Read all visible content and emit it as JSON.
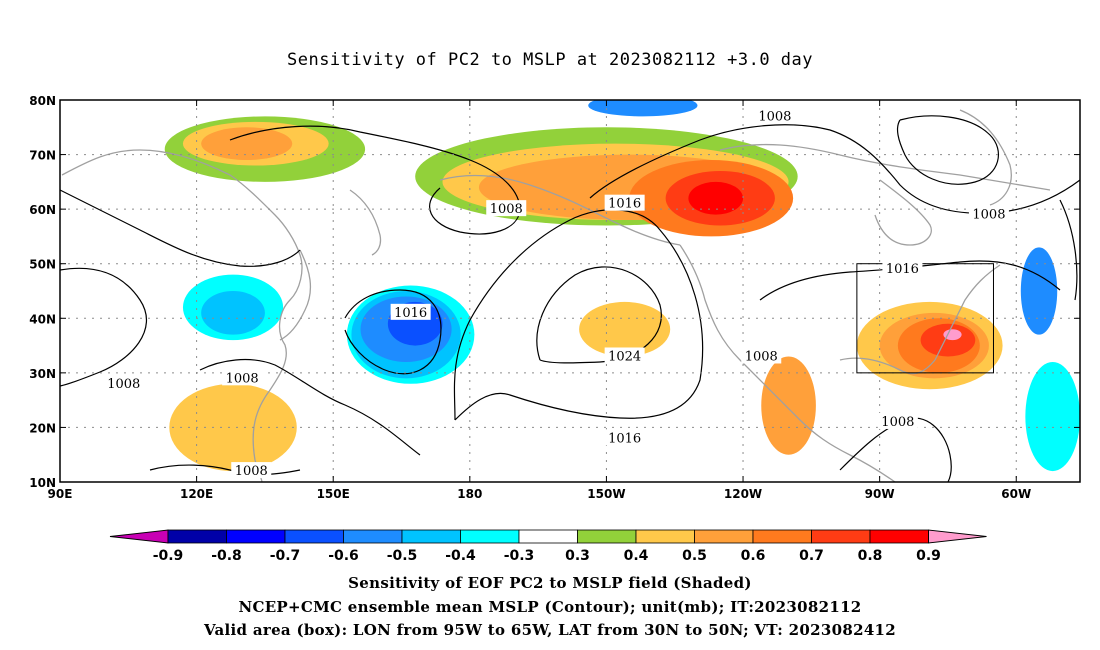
{
  "title": "Sensitivity of PC2 to MSLP at 2023082112 +3.0 day",
  "lat_ticks": [
    "80N",
    "70N",
    "60N",
    "50N",
    "40N",
    "30N",
    "20N",
    "10N"
  ],
  "lon_ticks": [
    "90E",
    "120E",
    "150E",
    "180",
    "150W",
    "120W",
    "90W",
    "60W"
  ],
  "lat_values": [
    80,
    70,
    60,
    50,
    40,
    30,
    20,
    10
  ],
  "lon_values": [
    90,
    120,
    150,
    180,
    210,
    240,
    270,
    300
  ],
  "contour_labels": [
    {
      "text": "1008",
      "lon": 247,
      "lat": 77
    },
    {
      "text": "1008",
      "lon": 294,
      "lat": 59
    },
    {
      "text": "1016",
      "lon": 214,
      "lat": 61
    },
    {
      "text": "1008",
      "lon": 188,
      "lat": 60
    },
    {
      "text": "1016",
      "lon": 275,
      "lat": 49
    },
    {
      "text": "1016",
      "lon": 167,
      "lat": 41
    },
    {
      "text": "1024",
      "lon": 214,
      "lat": 33
    },
    {
      "text": "1008",
      "lon": 244,
      "lat": 33
    },
    {
      "text": "1008",
      "lon": 104,
      "lat": 28
    },
    {
      "text": "1008",
      "lon": 130,
      "lat": 29
    },
    {
      "text": "1016",
      "lon": 214,
      "lat": 18
    },
    {
      "text": "1008",
      "lon": 274,
      "lat": 21
    },
    {
      "text": "1008",
      "lon": 132,
      "lat": 12
    }
  ],
  "valid_box": {
    "lon_min": 265,
    "lon_max": 295,
    "lat_min": 30,
    "lat_max": 50
  },
  "colorbar": {
    "labels": [
      "-0.9",
      "-0.8",
      "-0.7",
      "-0.6",
      "-0.5",
      "-0.4",
      "-0.3",
      "0.3",
      "0.4",
      "0.5",
      "0.6",
      "0.7",
      "0.8",
      "0.9"
    ],
    "colors": [
      "#0000a8",
      "#0000ff",
      "#0a50ff",
      "#1e8cff",
      "#00c3ff",
      "#00ffff",
      "#ffffff",
      "#92d13a",
      "#ffc84a",
      "#ffa03a",
      "#ff7a1e",
      "#ff3c14",
      "#ff0000"
    ],
    "low_color": "#c800b4",
    "high_color": "#ff9ccd"
  },
  "captions": {
    "line1": "Sensitivity of EOF PC2 to MSLP field (Shaded)",
    "line2": "NCEP+CMC ensemble mean MSLP (Contour); unit(mb); IT:2023082112",
    "line3": "Valid area (box): LON from 95W to 65W, LAT from 30N to 50N; VT: 2023082412"
  },
  "blobs": [
    {
      "lon": 135,
      "lat": 71,
      "rx": 22,
      "ry": 6,
      "color": "#92d13a"
    },
    {
      "lon": 133,
      "lat": 72,
      "rx": 16,
      "ry": 4,
      "color": "#ffc84a"
    },
    {
      "lon": 131,
      "lat": 72,
      "rx": 10,
      "ry": 3,
      "color": "#ffa03a"
    },
    {
      "lon": 210,
      "lat": 66,
      "rx": 42,
      "ry": 9,
      "color": "#92d13a"
    },
    {
      "lon": 212,
      "lat": 65,
      "rx": 38,
      "ry": 7,
      "color": "#ffc84a"
    },
    {
      "lon": 215,
      "lat": 64,
      "rx": 33,
      "ry": 6,
      "color": "#ffa03a"
    },
    {
      "lon": 233,
      "lat": 62,
      "rx": 18,
      "ry": 7,
      "color": "#ff7a1e"
    },
    {
      "lon": 235,
      "lat": 62,
      "rx": 12,
      "ry": 5,
      "color": "#ff3c14"
    },
    {
      "lon": 234,
      "lat": 62,
      "rx": 6,
      "ry": 3,
      "color": "#ff0000"
    },
    {
      "lon": 167,
      "lat": 37,
      "rx": 14,
      "ry": 9,
      "color": "#00ffff"
    },
    {
      "lon": 166,
      "lat": 37,
      "rx": 12,
      "ry": 8,
      "color": "#00c3ff"
    },
    {
      "lon": 166,
      "lat": 38,
      "rx": 10,
      "ry": 6,
      "color": "#1e8cff"
    },
    {
      "lon": 168,
      "lat": 39,
      "rx": 6,
      "ry": 4,
      "color": "#0a50ff"
    },
    {
      "lon": 128,
      "lat": 42,
      "rx": 11,
      "ry": 6,
      "color": "#00ffff"
    },
    {
      "lon": 128,
      "lat": 41,
      "rx": 7,
      "ry": 4,
      "color": "#00c3ff"
    },
    {
      "lon": 281,
      "lat": 35,
      "rx": 16,
      "ry": 8,
      "color": "#ffc84a"
    },
    {
      "lon": 282,
      "lat": 35,
      "rx": 12,
      "ry": 6,
      "color": "#ffa03a"
    },
    {
      "lon": 283,
      "lat": 35,
      "rx": 9,
      "ry": 5,
      "color": "#ff7a1e"
    },
    {
      "lon": 285,
      "lat": 36,
      "rx": 6,
      "ry": 3,
      "color": "#ff3c14"
    },
    {
      "lon": 286,
      "lat": 37,
      "rx": 2,
      "ry": 1,
      "color": "#ff9ccd"
    },
    {
      "lon": 250,
      "lat": 24,
      "rx": 6,
      "ry": 9,
      "color": "#ffa03a"
    },
    {
      "lon": 214,
      "lat": 38,
      "rx": 10,
      "ry": 5,
      "color": "#ffc84a"
    },
    {
      "lon": 128,
      "lat": 20,
      "rx": 14,
      "ry": 8,
      "color": "#ffc84a"
    },
    {
      "lon": 308,
      "lat": 22,
      "rx": 6,
      "ry": 10,
      "color": "#00ffff"
    },
    {
      "lon": 218,
      "lat": 79,
      "rx": 12,
      "ry": 2,
      "color": "#1e8cff"
    },
    {
      "lon": 305,
      "lat": 45,
      "rx": 4,
      "ry": 8,
      "color": "#1e8cff"
    }
  ]
}
